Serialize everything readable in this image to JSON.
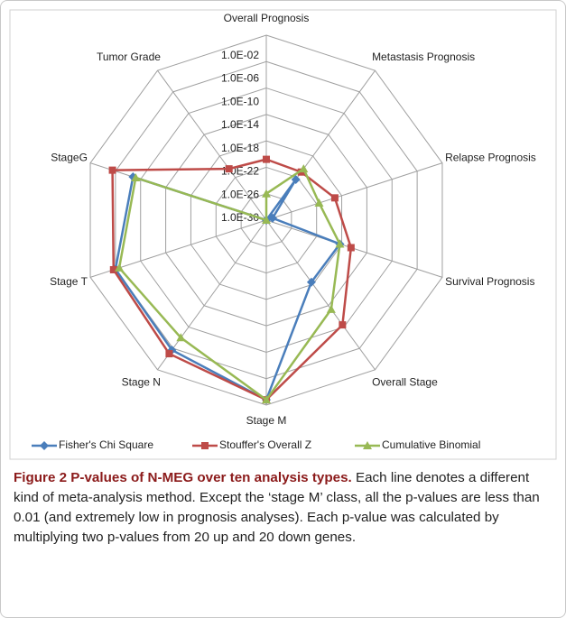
{
  "chart_data": {
    "type": "radar",
    "categories": [
      "Overall Prognosis",
      "Metastasis Prognosis",
      "Relapse Prognosis",
      "Survival Prognosis",
      "Overall Stage",
      "Stage M",
      "Stage N",
      "Stage T",
      "StageG",
      "Tumor Grade"
    ],
    "log": true,
    "ylim": [
      1e-30,
      0.01
    ],
    "yticks": [
      {
        "value": 0.01,
        "label": "1.0E-02"
      },
      {
        "value": 1e-06,
        "label": "1.0E-06"
      },
      {
        "value": 1e-10,
        "label": "1.0E-10"
      },
      {
        "value": 1e-14,
        "label": "1.0E-14"
      },
      {
        "value": 1e-18,
        "label": "1.0E-18"
      },
      {
        "value": 1e-22,
        "label": "1.0E-22"
      },
      {
        "value": 1e-26,
        "label": "1.0E-26"
      },
      {
        "value": 1e-30,
        "label": "1.0E-30"
      }
    ],
    "grid": true,
    "legend": "bottom",
    "series": [
      {
        "name": "Fisher's Chi Square",
        "color": "#4a7ebb",
        "marker": "diamond",
        "values": [
          1e-30,
          4e-23,
          1e-29,
          5e-19,
          4e-19,
          0.0016,
          2e-06,
          1e-06,
          1.6e-09,
          1e-30
        ]
      },
      {
        "name": "Stouffer's Overall Z",
        "color": "#be4b48",
        "marker": "square",
        "values": [
          1.6e-21,
          1e-21,
          8e-20,
          3e-17,
          4e-11,
          0.0016,
          1e-05,
          2e-06,
          3e-06,
          4e-21
        ]
      },
      {
        "name": "Cumulative Binomial",
        "color": "#98b954",
        "marker": "triangle",
        "values": [
          1e-26,
          4e-21,
          2.5e-22,
          5e-19,
          5e-14,
          0.0016,
          1e-08,
          2.5e-07,
          6e-10,
          1e-30
        ]
      }
    ]
  },
  "caption": {
    "title": "Figure 2 P-values of N-MEG over ten analysis types.",
    "text": "Each line denotes a different kind of meta-analysis method. Except the ‘stage M’ class, all the p-values are less than 0.01 (and extremely low in prognosis analyses). Each p-value was calculated by multiplying two p-values from 20 up and 20 down genes."
  }
}
